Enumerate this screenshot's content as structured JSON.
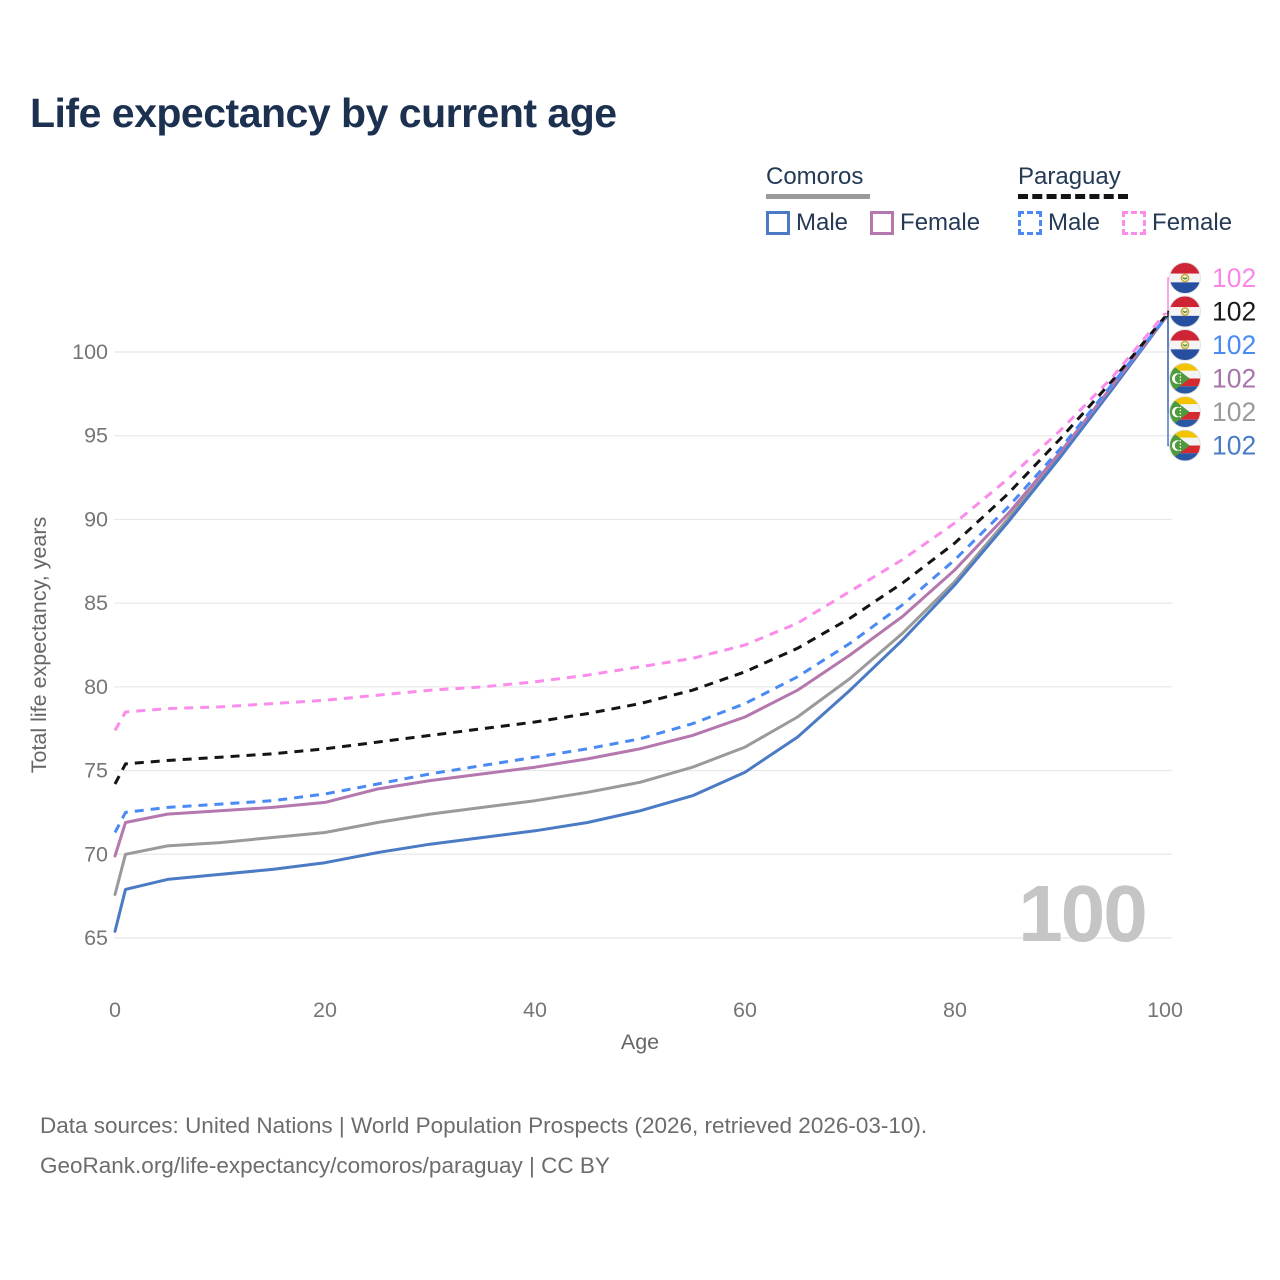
{
  "header": {
    "title": "Life expectancy by current age"
  },
  "legend": {
    "groups": [
      {
        "label": "Comoros",
        "line_style": "solid",
        "underline_color": "#9a9a9a",
        "items": [
          {
            "label": "Male",
            "color": "#4a7bc4",
            "dashed": false
          },
          {
            "label": "Female",
            "color": "#b478ae",
            "dashed": false
          }
        ]
      },
      {
        "label": "Paraguay",
        "line_style": "dashed",
        "underline_color": "#141414",
        "items": [
          {
            "label": "Male",
            "color": "#4a8af4",
            "dashed": true
          },
          {
            "label": "Female",
            "color": "#fb8ceb",
            "dashed": true
          }
        ]
      }
    ]
  },
  "chart_data": {
    "type": "line",
    "title": "Life expectancy by current age",
    "xlabel": "Age",
    "ylabel": "Total life expectancy, years",
    "xlim": [
      0,
      100
    ],
    "ylim": [
      65,
      100
    ],
    "x_ticks": [
      0,
      20,
      40,
      60,
      80,
      100
    ],
    "y_ticks": [
      65,
      70,
      75,
      80,
      85,
      90,
      95,
      100
    ],
    "grid": "horizontal-only",
    "gridline_color": "#e8e8e8",
    "watermark": "100",
    "ages": [
      0,
      1,
      5,
      10,
      15,
      20,
      25,
      30,
      35,
      40,
      45,
      50,
      55,
      60,
      65,
      70,
      75,
      80,
      85,
      90,
      95,
      100
    ],
    "series": [
      {
        "name": "Comoros Both sexes",
        "country": "Comoros",
        "sex": "both",
        "color": "#9a9a9a",
        "dashed": false,
        "values": [
          67.6,
          70.0,
          70.5,
          70.7,
          71.0,
          71.3,
          71.9,
          72.4,
          72.8,
          73.2,
          73.7,
          74.3,
          75.2,
          76.4,
          78.2,
          80.5,
          83.2,
          86.3,
          90.0,
          93.9,
          98.0,
          102.0
        ]
      },
      {
        "name": "Comoros Male",
        "country": "Comoros",
        "sex": "male",
        "color": "#4a7bc4",
        "dashed": false,
        "values": [
          65.4,
          67.9,
          68.5,
          68.8,
          69.1,
          69.5,
          70.1,
          70.6,
          71.0,
          71.4,
          71.9,
          72.6,
          73.5,
          74.9,
          77.0,
          79.8,
          82.8,
          86.1,
          89.8,
          93.7,
          97.8,
          102.0
        ]
      },
      {
        "name": "Comoros Female",
        "country": "Comoros",
        "sex": "female",
        "color": "#b478ae",
        "dashed": false,
        "values": [
          69.9,
          71.9,
          72.4,
          72.6,
          72.8,
          73.1,
          73.9,
          74.4,
          74.8,
          75.2,
          75.7,
          76.3,
          77.1,
          78.2,
          79.8,
          81.9,
          84.2,
          87.0,
          90.3,
          94.0,
          98.0,
          102.0
        ]
      },
      {
        "name": "Paraguay Both sexes",
        "country": "Paraguay",
        "sex": "both",
        "color": "#141414",
        "dashed": true,
        "values": [
          74.2,
          75.4,
          75.6,
          75.8,
          76.0,
          76.3,
          76.7,
          77.1,
          77.5,
          77.9,
          78.4,
          79.0,
          79.8,
          80.9,
          82.3,
          84.1,
          86.2,
          88.6,
          91.5,
          94.8,
          98.3,
          102.1
        ]
      },
      {
        "name": "Paraguay Male",
        "country": "Paraguay",
        "sex": "male",
        "color": "#4a8af4",
        "dashed": true,
        "values": [
          71.3,
          72.5,
          72.8,
          73.0,
          73.2,
          73.6,
          74.2,
          74.8,
          75.3,
          75.8,
          76.3,
          76.9,
          77.8,
          79.0,
          80.6,
          82.6,
          84.9,
          87.6,
          90.7,
          94.2,
          98.1,
          102.0
        ]
      },
      {
        "name": "Paraguay Female",
        "country": "Paraguay",
        "sex": "female",
        "color": "#fb8ceb",
        "dashed": true,
        "values": [
          77.4,
          78.5,
          78.7,
          78.8,
          79.0,
          79.2,
          79.5,
          79.8,
          80.0,
          80.3,
          80.7,
          81.2,
          81.7,
          82.5,
          83.8,
          85.7,
          87.6,
          89.8,
          92.4,
          95.3,
          98.5,
          102.3
        ]
      }
    ],
    "end_labels": [
      {
        "value": "102",
        "flag": "paraguay",
        "color": "#f987e8",
        "series_index": 5
      },
      {
        "value": "102",
        "flag": "paraguay",
        "color": "#1a1a1a",
        "series_index": 3
      },
      {
        "value": "102",
        "flag": "paraguay",
        "color": "#4a8af4",
        "series_index": 4
      },
      {
        "value": "102",
        "flag": "comoros",
        "color": "#a874ac",
        "series_index": 2
      },
      {
        "value": "102",
        "flag": "comoros",
        "color": "#9a9a9a",
        "series_index": 0
      },
      {
        "value": "102",
        "flag": "comoros",
        "color": "#4a7bc4",
        "series_index": 1
      }
    ]
  },
  "footer": {
    "line1": "Data sources: United Nations | World Population Prospects (2026, retrieved 2026-03-10).",
    "line2": "GeoRank.org/life-expectancy/comoros/paraguay | CC BY"
  }
}
